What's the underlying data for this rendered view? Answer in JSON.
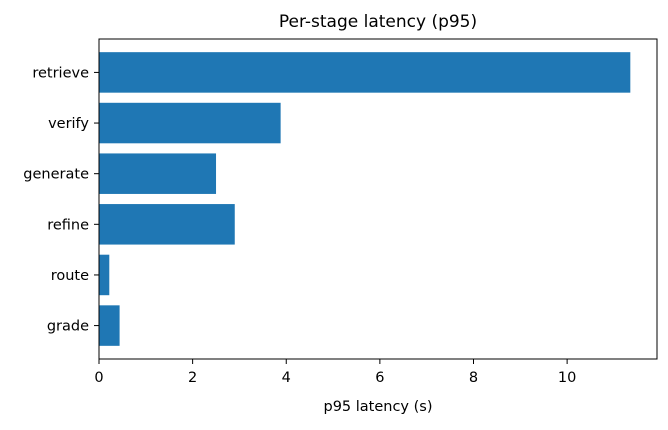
{
  "chart_data": {
    "type": "bar",
    "orientation": "horizontal",
    "title": "Per-stage latency (p95)",
    "xlabel": "p95 latency (s)",
    "ylabel": "",
    "categories": [
      "retrieve",
      "verify",
      "generate",
      "refine",
      "route",
      "grade"
    ],
    "values": [
      11.35,
      3.88,
      2.5,
      2.9,
      0.22,
      0.44
    ],
    "xlim": [
      0,
      11.92
    ],
    "xticks": [
      0,
      2,
      4,
      6,
      8,
      10
    ],
    "bar_color": "#1f77b4",
    "grid": false,
    "legend": "none"
  }
}
